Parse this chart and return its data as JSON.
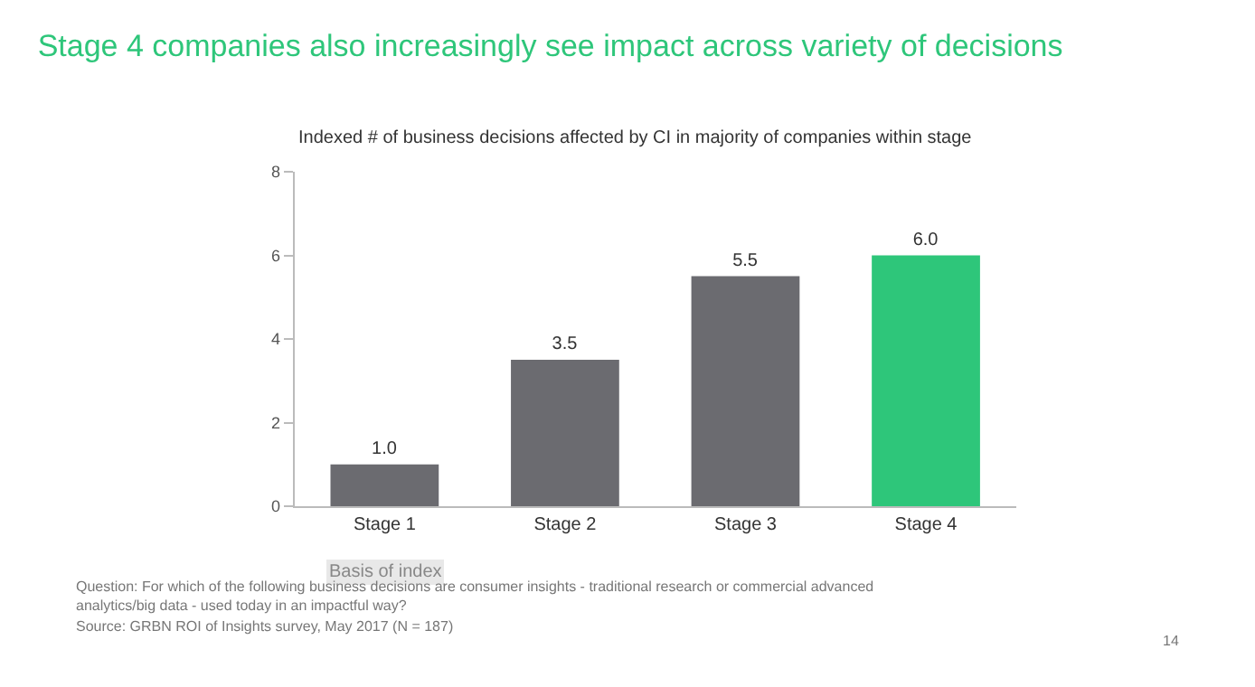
{
  "chart_data": {
    "type": "bar",
    "title": "Stage 4 companies also increasingly see impact across variety of decisions",
    "subtitle": "Indexed # of business decisions affected by CI in majority of companies within stage",
    "categories": [
      "Stage 1",
      "Stage 2",
      "Stage 3",
      "Stage 4"
    ],
    "values": [
      1.0,
      3.5,
      5.5,
      6.0
    ],
    "colors": [
      "#6b6b70",
      "#6b6b70",
      "#6b6b70",
      "#2ec67a"
    ],
    "value_labels": [
      "1.0",
      "3.5",
      "5.5",
      "6.0"
    ],
    "ylim": [
      0,
      8
    ],
    "yticks": [
      0,
      2,
      4,
      6,
      8
    ],
    "grid": false,
    "legend": false,
    "annotations": [
      "Basis of index",
      "Question: For which of the following business decisions are consumer insights - traditional research or commercial advanced analytics/big data - used today in an impactful way?",
      "Source: GRBN ROI of Insights survey, May 2017 (N = 187)",
      "14"
    ]
  }
}
